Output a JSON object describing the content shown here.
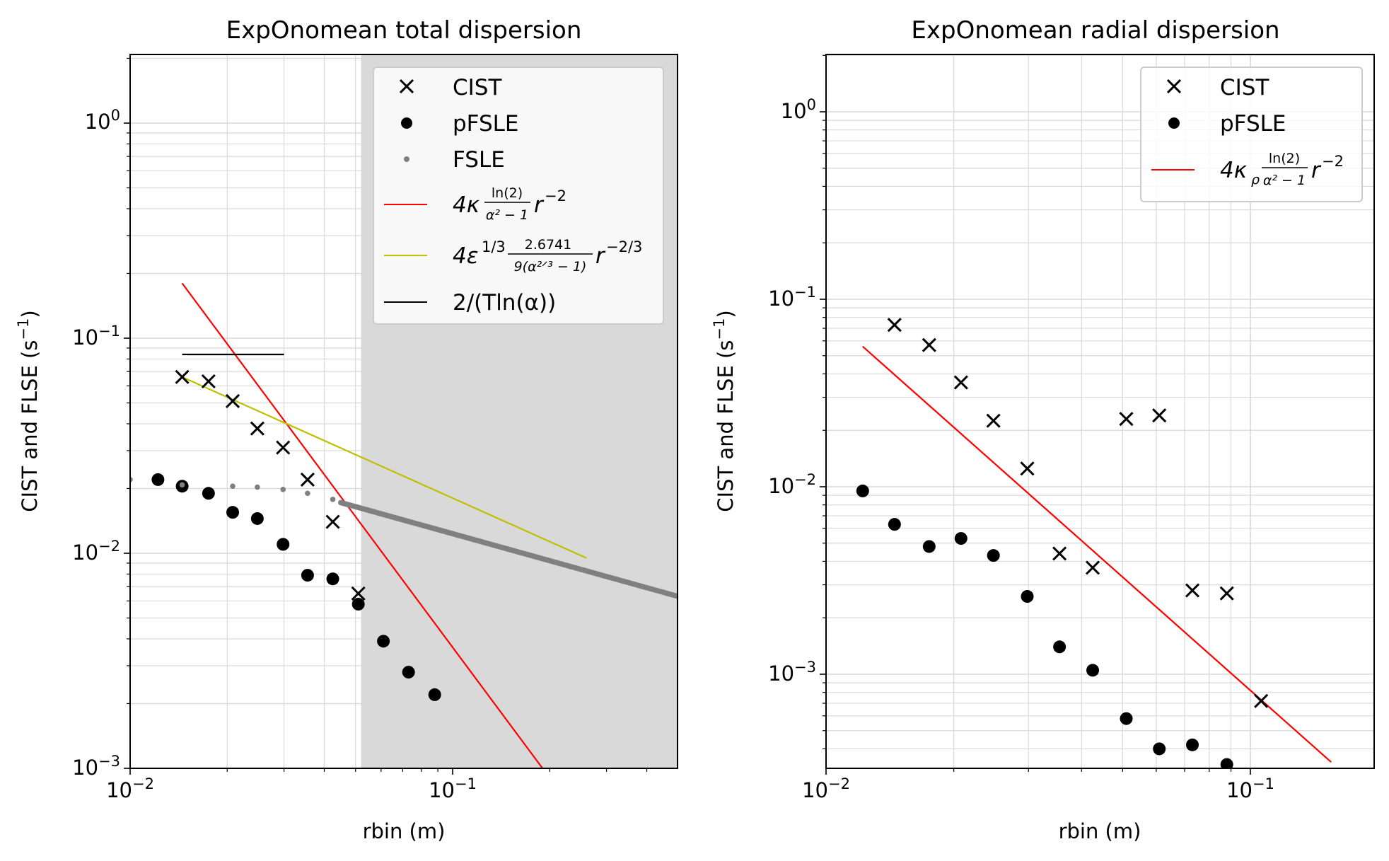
{
  "chart_data": [
    {
      "type": "scatter",
      "title": "ExpOnomean total dispersion",
      "xlabel": "rbin (m)",
      "ylabel": "CIST and FLSE (s^-1)",
      "xscale": "log",
      "yscale": "log",
      "xlim": [
        0.01,
        0.5
      ],
      "ylim": [
        0.001,
        2
      ],
      "grid": true,
      "legend_position": "top-right",
      "shaded_x_range": [
        0.052,
        0.5
      ],
      "xtick_labels": [
        "10^-2",
        "10^-1"
      ],
      "ytick_labels": [
        "10^-3",
        "10^-2",
        "10^-1",
        "10^0"
      ],
      "series": [
        {
          "name": "CIST",
          "marker": "x",
          "color": "#000000",
          "x": [
            0.0145,
            0.0175,
            0.0208,
            0.0248,
            0.0298,
            0.0355,
            0.0425,
            0.051
          ],
          "y": [
            0.066,
            0.063,
            0.051,
            0.038,
            0.031,
            0.022,
            0.014,
            0.0065
          ]
        },
        {
          "name": "pFSLE",
          "marker": "circle",
          "color": "#000000",
          "x": [
            0.0122,
            0.0145,
            0.0175,
            0.0208,
            0.0248,
            0.0298,
            0.0355,
            0.0425,
            0.051,
            0.061,
            0.073,
            0.088
          ],
          "y": [
            0.022,
            0.0205,
            0.019,
            0.0155,
            0.0145,
            0.011,
            0.0079,
            0.0076,
            0.0058,
            0.0039,
            0.0028,
            0.0022
          ]
        },
        {
          "name": "FSLE",
          "marker": "small-dot",
          "color": "#808080",
          "x_start": 0.01,
          "x_end": 0.5,
          "y_start": 0.022,
          "y_end": 0.0063,
          "x_sparse": [
            0.01,
            0.0145,
            0.0208,
            0.0248,
            0.0298,
            0.0355,
            0.0425
          ],
          "y_sparse": [
            0.022,
            0.0208,
            0.0205,
            0.0203,
            0.0198,
            0.019,
            0.0178
          ]
        },
        {
          "name": "4κ ln(2)/(α²−1) r^−2",
          "kind": "line",
          "color": "#ff0000",
          "x": [
            0.0145,
            0.19
          ],
          "y": [
            0.18,
            0.001
          ]
        },
        {
          "name": "4ε^1/3 2.6741/(9(α^2/3−1)) r^−2/3",
          "kind": "line",
          "color": "#bfbf00",
          "x": [
            0.0145,
            0.26
          ],
          "y": [
            0.066,
            0.0095
          ]
        },
        {
          "name": "2/(T ln(α))",
          "kind": "line",
          "color": "#000000",
          "x": [
            0.0145,
            0.03
          ],
          "y": [
            0.084,
            0.084
          ]
        }
      ],
      "legend": {
        "cist": "CIST",
        "pfsle": "pFSLE",
        "fsle": "FSLE",
        "red_coef": "4κ",
        "red_num": "ln(2)",
        "red_den": "α² − 1",
        "red_tail": "r",
        "red_exp": "−2",
        "yel_coef": "4ε",
        "yel_coef_exp": "1/3",
        "yel_num": "2.6741",
        "yel_den": "9(α²ᐟ³ − 1)",
        "yel_tail": "r",
        "yel_exp": "−2/3",
        "black": "2/(Tln(α))"
      }
    },
    {
      "type": "scatter",
      "title": "ExpOnomean radial dispersion",
      "xlabel": "rbin (m)",
      "ylabel": "CIST and FLSE (s^-1)",
      "xscale": "log",
      "yscale": "log",
      "xlim": [
        0.01,
        0.2
      ],
      "ylim": [
        0.00033,
        2
      ],
      "grid": true,
      "legend_position": "top-right",
      "xtick_labels": [
        "10^-2",
        "10^-1"
      ],
      "ytick_labels": [
        "10^-3",
        "10^-2",
        "10^-1",
        "10^0"
      ],
      "series": [
        {
          "name": "CIST",
          "marker": "x",
          "color": "#000000",
          "x": [
            0.0145,
            0.0175,
            0.0208,
            0.0248,
            0.0298,
            0.0355,
            0.0425,
            0.051,
            0.061,
            0.073,
            0.088,
            0.106
          ],
          "y": [
            0.073,
            0.057,
            0.036,
            0.0225,
            0.0125,
            0.0044,
            0.0037,
            0.023,
            0.024,
            0.0028,
            0.0027,
            0.00072
          ]
        },
        {
          "name": "pFSLE",
          "marker": "circle",
          "color": "#000000",
          "x": [
            0.0122,
            0.0145,
            0.0175,
            0.0208,
            0.0248,
            0.0298,
            0.0355,
            0.0425,
            0.051,
            0.061,
            0.073,
            0.088
          ],
          "y": [
            0.0095,
            0.0063,
            0.0048,
            0.0053,
            0.0043,
            0.0026,
            0.0014,
            0.00105,
            0.00058,
            0.0004,
            0.00042,
            0.00033
          ]
        },
        {
          "name": "4κρ ln(2)/(α²−1) r^−2",
          "kind": "line",
          "color": "#ff0000",
          "x": [
            0.0122,
            0.155
          ],
          "y": [
            0.056,
            0.00034
          ]
        }
      ],
      "legend": {
        "cist": "CIST",
        "pfsle": "pFSLE",
        "red_coef": "4κ",
        "red_sub": "ρ",
        "red_num": "ln(2)",
        "red_den": "α² − 1",
        "red_tail": "r",
        "red_exp": "−2"
      }
    }
  ]
}
